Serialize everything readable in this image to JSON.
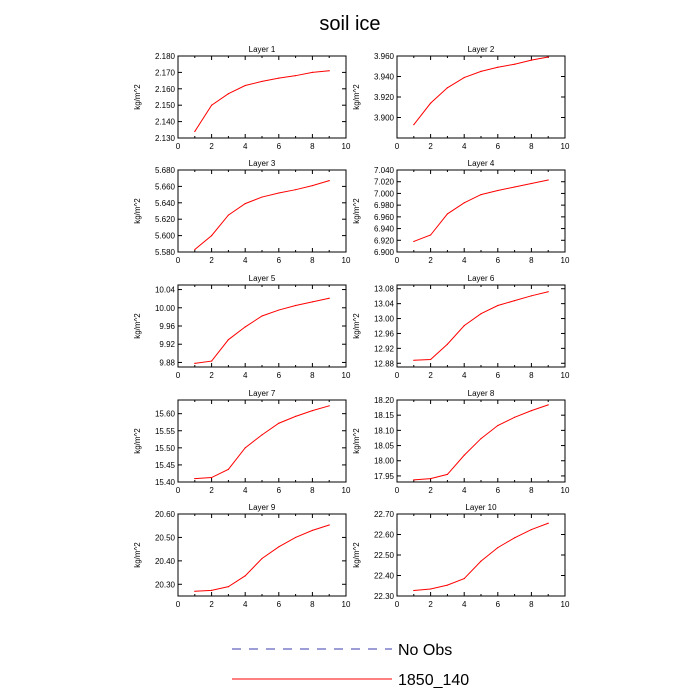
{
  "figure": {
    "title": "soil ice"
  },
  "legend": [
    {
      "label": "No Obs",
      "color": "#3b3bb0",
      "style": "dashed"
    },
    {
      "label": "1850_140",
      "color": "#ff0000",
      "style": "solid"
    }
  ],
  "chart_data": [
    {
      "type": "line",
      "title": "Layer 1",
      "xlabel": "",
      "ylabel": "kg/m^2",
      "xlim": [
        0,
        10
      ],
      "xticks": [
        0,
        2,
        4,
        6,
        8,
        10
      ],
      "ylim": [
        2.13,
        2.18
      ],
      "yticks": [
        2.13,
        2.14,
        2.15,
        2.16,
        2.17,
        2.18
      ],
      "ytick_labels": [
        "2.130",
        "2.140",
        "2.150",
        "2.160",
        "2.170",
        "2.180"
      ],
      "series": [
        {
          "name": "1850_140",
          "color": "#ff0000",
          "x": [
            1,
            2,
            3,
            4,
            5,
            6,
            7,
            8,
            9
          ],
          "values": [
            2.134,
            2.15,
            2.157,
            2.162,
            2.1645,
            2.1665,
            2.168,
            2.17,
            2.171
          ]
        }
      ]
    },
    {
      "type": "line",
      "title": "Layer 2",
      "xlabel": "",
      "ylabel": "kg/m^2",
      "xlim": [
        0,
        10
      ],
      "xticks": [
        0,
        2,
        4,
        6,
        8,
        10
      ],
      "ylim": [
        3.88,
        3.96
      ],
      "yticks": [
        3.9,
        3.92,
        3.94,
        3.96
      ],
      "ytick_labels": [
        "3.900",
        "3.920",
        "3.940",
        "3.960"
      ],
      "series": [
        {
          "name": "1850_140",
          "color": "#ff0000",
          "x": [
            1,
            2,
            3,
            4,
            5,
            6,
            7,
            8,
            9
          ],
          "values": [
            3.893,
            3.914,
            3.929,
            3.939,
            3.945,
            3.949,
            3.952,
            3.956,
            3.959
          ]
        }
      ]
    },
    {
      "type": "line",
      "title": "Layer 3",
      "xlabel": "",
      "ylabel": "kg/m^2",
      "xlim": [
        0,
        10
      ],
      "xticks": [
        0,
        2,
        4,
        6,
        8,
        10
      ],
      "ylim": [
        5.58,
        5.68
      ],
      "yticks": [
        5.58,
        5.6,
        5.62,
        5.64,
        5.66,
        5.68
      ],
      "ytick_labels": [
        "5.580",
        "5.600",
        "5.620",
        "5.640",
        "5.660",
        "5.680"
      ],
      "series": [
        {
          "name": "1850_140",
          "color": "#ff0000",
          "x": [
            1,
            2,
            3,
            4,
            5,
            6,
            7,
            8,
            9
          ],
          "values": [
            5.583,
            5.6,
            5.625,
            5.639,
            5.647,
            5.652,
            5.656,
            5.661,
            5.667
          ]
        }
      ]
    },
    {
      "type": "line",
      "title": "Layer 4",
      "xlabel": "",
      "ylabel": "kg/m^2",
      "xlim": [
        0,
        10
      ],
      "xticks": [
        0,
        2,
        4,
        6,
        8,
        10
      ],
      "ylim": [
        6.9,
        7.04
      ],
      "yticks": [
        6.9,
        6.92,
        6.94,
        6.96,
        6.98,
        7.0,
        7.02,
        7.04
      ],
      "ytick_labels": [
        "6.900",
        "6.920",
        "6.940",
        "6.960",
        "6.980",
        "7.000",
        "7.020",
        "7.040"
      ],
      "series": [
        {
          "name": "1850_140",
          "color": "#ff0000",
          "x": [
            1,
            2,
            3,
            4,
            5,
            6,
            7,
            8,
            9
          ],
          "values": [
            6.918,
            6.929,
            6.965,
            6.984,
            6.998,
            7.005,
            7.011,
            7.017,
            7.023
          ]
        }
      ]
    },
    {
      "type": "line",
      "title": "Layer 5",
      "xlabel": "",
      "ylabel": "kg/m^2",
      "xlim": [
        0,
        10
      ],
      "xticks": [
        0,
        2,
        4,
        6,
        8,
        10
      ],
      "ylim": [
        9.87,
        10.05
      ],
      "yticks": [
        9.88,
        9.92,
        9.96,
        10.0,
        10.04
      ],
      "ytick_labels": [
        "9.88",
        "9.92",
        "9.96",
        "10.00",
        "10.04"
      ],
      "series": [
        {
          "name": "1850_140",
          "color": "#ff0000",
          "x": [
            1,
            2,
            3,
            4,
            5,
            6,
            7,
            8,
            9
          ],
          "values": [
            9.878,
            9.883,
            9.93,
            9.958,
            9.982,
            9.995,
            10.005,
            10.013,
            10.021
          ]
        }
      ]
    },
    {
      "type": "line",
      "title": "Layer 6",
      "xlabel": "",
      "ylabel": "kg/m^2",
      "xlim": [
        0,
        10
      ],
      "xticks": [
        0,
        2,
        4,
        6,
        8,
        10
      ],
      "ylim": [
        12.87,
        13.09
      ],
      "yticks": [
        12.88,
        12.92,
        12.96,
        13.0,
        13.04,
        13.08
      ],
      "ytick_labels": [
        "12.88",
        "12.92",
        "12.96",
        "13.00",
        "13.04",
        "13.08"
      ],
      "series": [
        {
          "name": "1850_140",
          "color": "#ff0000",
          "x": [
            1,
            2,
            3,
            4,
            5,
            6,
            7,
            8,
            9
          ],
          "values": [
            12.888,
            12.89,
            12.931,
            12.981,
            13.013,
            13.035,
            13.048,
            13.061,
            13.072
          ]
        }
      ]
    },
    {
      "type": "line",
      "title": "Layer 7",
      "xlabel": "",
      "ylabel": "kg/m^2",
      "xlim": [
        0,
        10
      ],
      "xticks": [
        0,
        2,
        4,
        6,
        8,
        10
      ],
      "ylim": [
        15.4,
        15.64
      ],
      "yticks": [
        15.4,
        15.45,
        15.5,
        15.55,
        15.6
      ],
      "ytick_labels": [
        "15.40",
        "15.45",
        "15.50",
        "15.55",
        "15.60"
      ],
      "series": [
        {
          "name": "1850_140",
          "color": "#ff0000",
          "x": [
            1,
            2,
            3,
            4,
            5,
            6,
            7,
            8,
            9
          ],
          "values": [
            15.41,
            15.413,
            15.437,
            15.5,
            15.538,
            15.572,
            15.592,
            15.609,
            15.623
          ]
        }
      ]
    },
    {
      "type": "line",
      "title": "Layer 8",
      "xlabel": "",
      "ylabel": "kg/m^2",
      "xlim": [
        0,
        10
      ],
      "xticks": [
        0,
        2,
        4,
        6,
        8,
        10
      ],
      "ylim": [
        17.93,
        18.2
      ],
      "yticks": [
        17.95,
        18.0,
        18.05,
        18.1,
        18.15,
        18.2
      ],
      "ytick_labels": [
        "17.95",
        "18.00",
        "18.05",
        "18.10",
        "18.15",
        "18.20"
      ],
      "series": [
        {
          "name": "1850_140",
          "color": "#ff0000",
          "x": [
            1,
            2,
            3,
            4,
            5,
            6,
            7,
            8,
            9
          ],
          "values": [
            17.937,
            17.941,
            17.955,
            18.018,
            18.073,
            18.116,
            18.143,
            18.165,
            18.184
          ]
        }
      ]
    },
    {
      "type": "line",
      "title": "Layer 9",
      "xlabel": "",
      "ylabel": "kg/m^2",
      "xlim": [
        0,
        10
      ],
      "xticks": [
        0,
        2,
        4,
        6,
        8,
        10
      ],
      "ylim": [
        20.25,
        20.6
      ],
      "yticks": [
        20.3,
        20.4,
        20.5,
        20.6
      ],
      "ytick_labels": [
        "20.30",
        "20.40",
        "20.50",
        "20.60"
      ],
      "series": [
        {
          "name": "1850_140",
          "color": "#ff0000",
          "x": [
            1,
            2,
            3,
            4,
            5,
            6,
            7,
            8,
            9
          ],
          "values": [
            20.27,
            20.274,
            20.29,
            20.336,
            20.41,
            20.46,
            20.5,
            20.53,
            20.553
          ]
        }
      ]
    },
    {
      "type": "line",
      "title": "Layer 10",
      "xlabel": "",
      "ylabel": "kg/m^2",
      "xlim": [
        0,
        10
      ],
      "xticks": [
        0,
        2,
        4,
        6,
        8,
        10
      ],
      "ylim": [
        22.3,
        22.7
      ],
      "yticks": [
        22.3,
        22.4,
        22.5,
        22.6,
        22.7
      ],
      "ytick_labels": [
        "22.30",
        "22.40",
        "22.50",
        "22.60",
        "22.70"
      ],
      "series": [
        {
          "name": "1850_140",
          "color": "#ff0000",
          "x": [
            1,
            2,
            3,
            4,
            5,
            6,
            7,
            8,
            9
          ],
          "values": [
            22.327,
            22.334,
            22.353,
            22.385,
            22.47,
            22.536,
            22.584,
            22.624,
            22.655
          ]
        }
      ]
    }
  ]
}
